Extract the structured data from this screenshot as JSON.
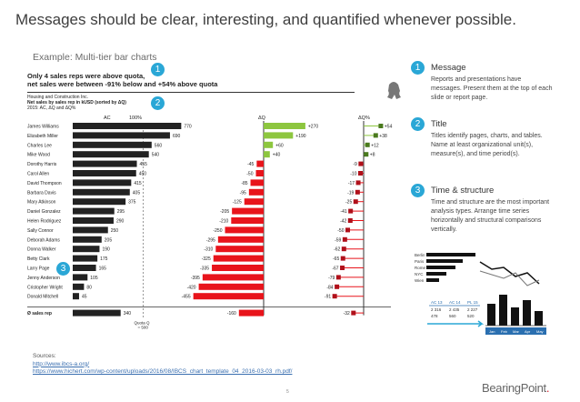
{
  "slide": {
    "title": "Messages should be clear, interesting, and quantified whenever possible.",
    "subtitle": "Example: Multi-tier bar charts",
    "page_number": "5",
    "logo_text": "BearingPoint",
    "logo_dot": "."
  },
  "sources": {
    "label": "Sources:",
    "link1": "http://www.ibcs-a.org/",
    "link2": "https://www.hichert.com/wp-content/uploads/2016/08/IBCS_chart_template_04_2016-03-03_rh.pdf/"
  },
  "sidebar": [
    {
      "num": "1",
      "title": "Message",
      "text": "Reports and presentations have messages. Present them at the top of each slide or report page."
    },
    {
      "num": "2",
      "title": "Title",
      "text": "Titles identify pages, charts, and tables. Name at least organizational unit(s), measure(s), and time period(s)."
    },
    {
      "num": "3",
      "title": "Time & structure",
      "text": "Time and structure are the most important analysis types. Arrange time series horizontally and structural comparisons vertically."
    }
  ],
  "colors": {
    "accent": "#2aa7d6",
    "positive": "#8dc63f",
    "negative": "#e8141b",
    "bars": "#222222"
  },
  "chart_data": {
    "type": "bar",
    "message_line1": "Only 4 sales reps were above quota,",
    "message_line2": "net sales were between -91% below and +54% above quota",
    "company": "Housing and Construction Inc.",
    "measure": "Net sales by sales rep in kUSD (sorted by ΔQ)",
    "period": "2015: AC, ΔQ and ΔQ%",
    "col_ac": "AC",
    "col_ac_pct": "100%",
    "col_dq": "ΔQ",
    "col_dqpct": "ΔQ%",
    "total_label": "Ø sales rep",
    "quota_label": "Quota Q",
    "quota_value": "= 500",
    "badges": [
      "1",
      "2",
      "3"
    ],
    "categories": [
      "James Williams",
      "Elizabeth Miller",
      "Charles Lee",
      "Mike Wood",
      "Dorothy Harris",
      "Carol Allen",
      "David Thompson",
      "Barbara Davis",
      "Mary Atkinson",
      "Daniel Gonzalez",
      "Helen Rodriguez",
      "Sally Connor",
      "Deborah Adams",
      "Donna Walker",
      "Betty Clark",
      "Larry Page",
      "Jenny Anderson",
      "Cristopher Wright",
      "Donald Mitchell"
    ],
    "series": [
      {
        "name": "AC",
        "values": [
          770,
          690,
          560,
          540,
          455,
          450,
          415,
          405,
          375,
          295,
          290,
          250,
          205,
          190,
          175,
          165,
          105,
          80,
          45
        ]
      },
      {
        "name": "ΔQ",
        "values": [
          270,
          190,
          60,
          40,
          -45,
          -50,
          -85,
          -95,
          -125,
          -205,
          -210,
          -250,
          -295,
          -310,
          -325,
          -335,
          -395,
          -420,
          -455
        ]
      },
      {
        "name": "ΔQ%",
        "values": [
          54,
          38,
          12,
          8,
          -9,
          -10,
          -17,
          -19,
          -25,
          -41,
          -42,
          -50,
          -59,
          -62,
          -65,
          -67,
          -79,
          -84,
          -91
        ]
      }
    ],
    "totals": {
      "AC": 340,
      "ΔQ": -160,
      "ΔQ%": -32
    }
  },
  "mini_chart": {
    "row_labels": [
      "Berlin",
      "Paris",
      "Rome",
      "NYC",
      "Wien"
    ],
    "col_heads": [
      "AC 13",
      "AC 14",
      "PL 15"
    ],
    "row1": [
      "2 316",
      "2 435",
      "2 227"
    ],
    "row2": [
      "478",
      "560",
      "520"
    ],
    "months": [
      "Jan",
      "Feb",
      "Mar",
      "Apr",
      "May"
    ]
  }
}
